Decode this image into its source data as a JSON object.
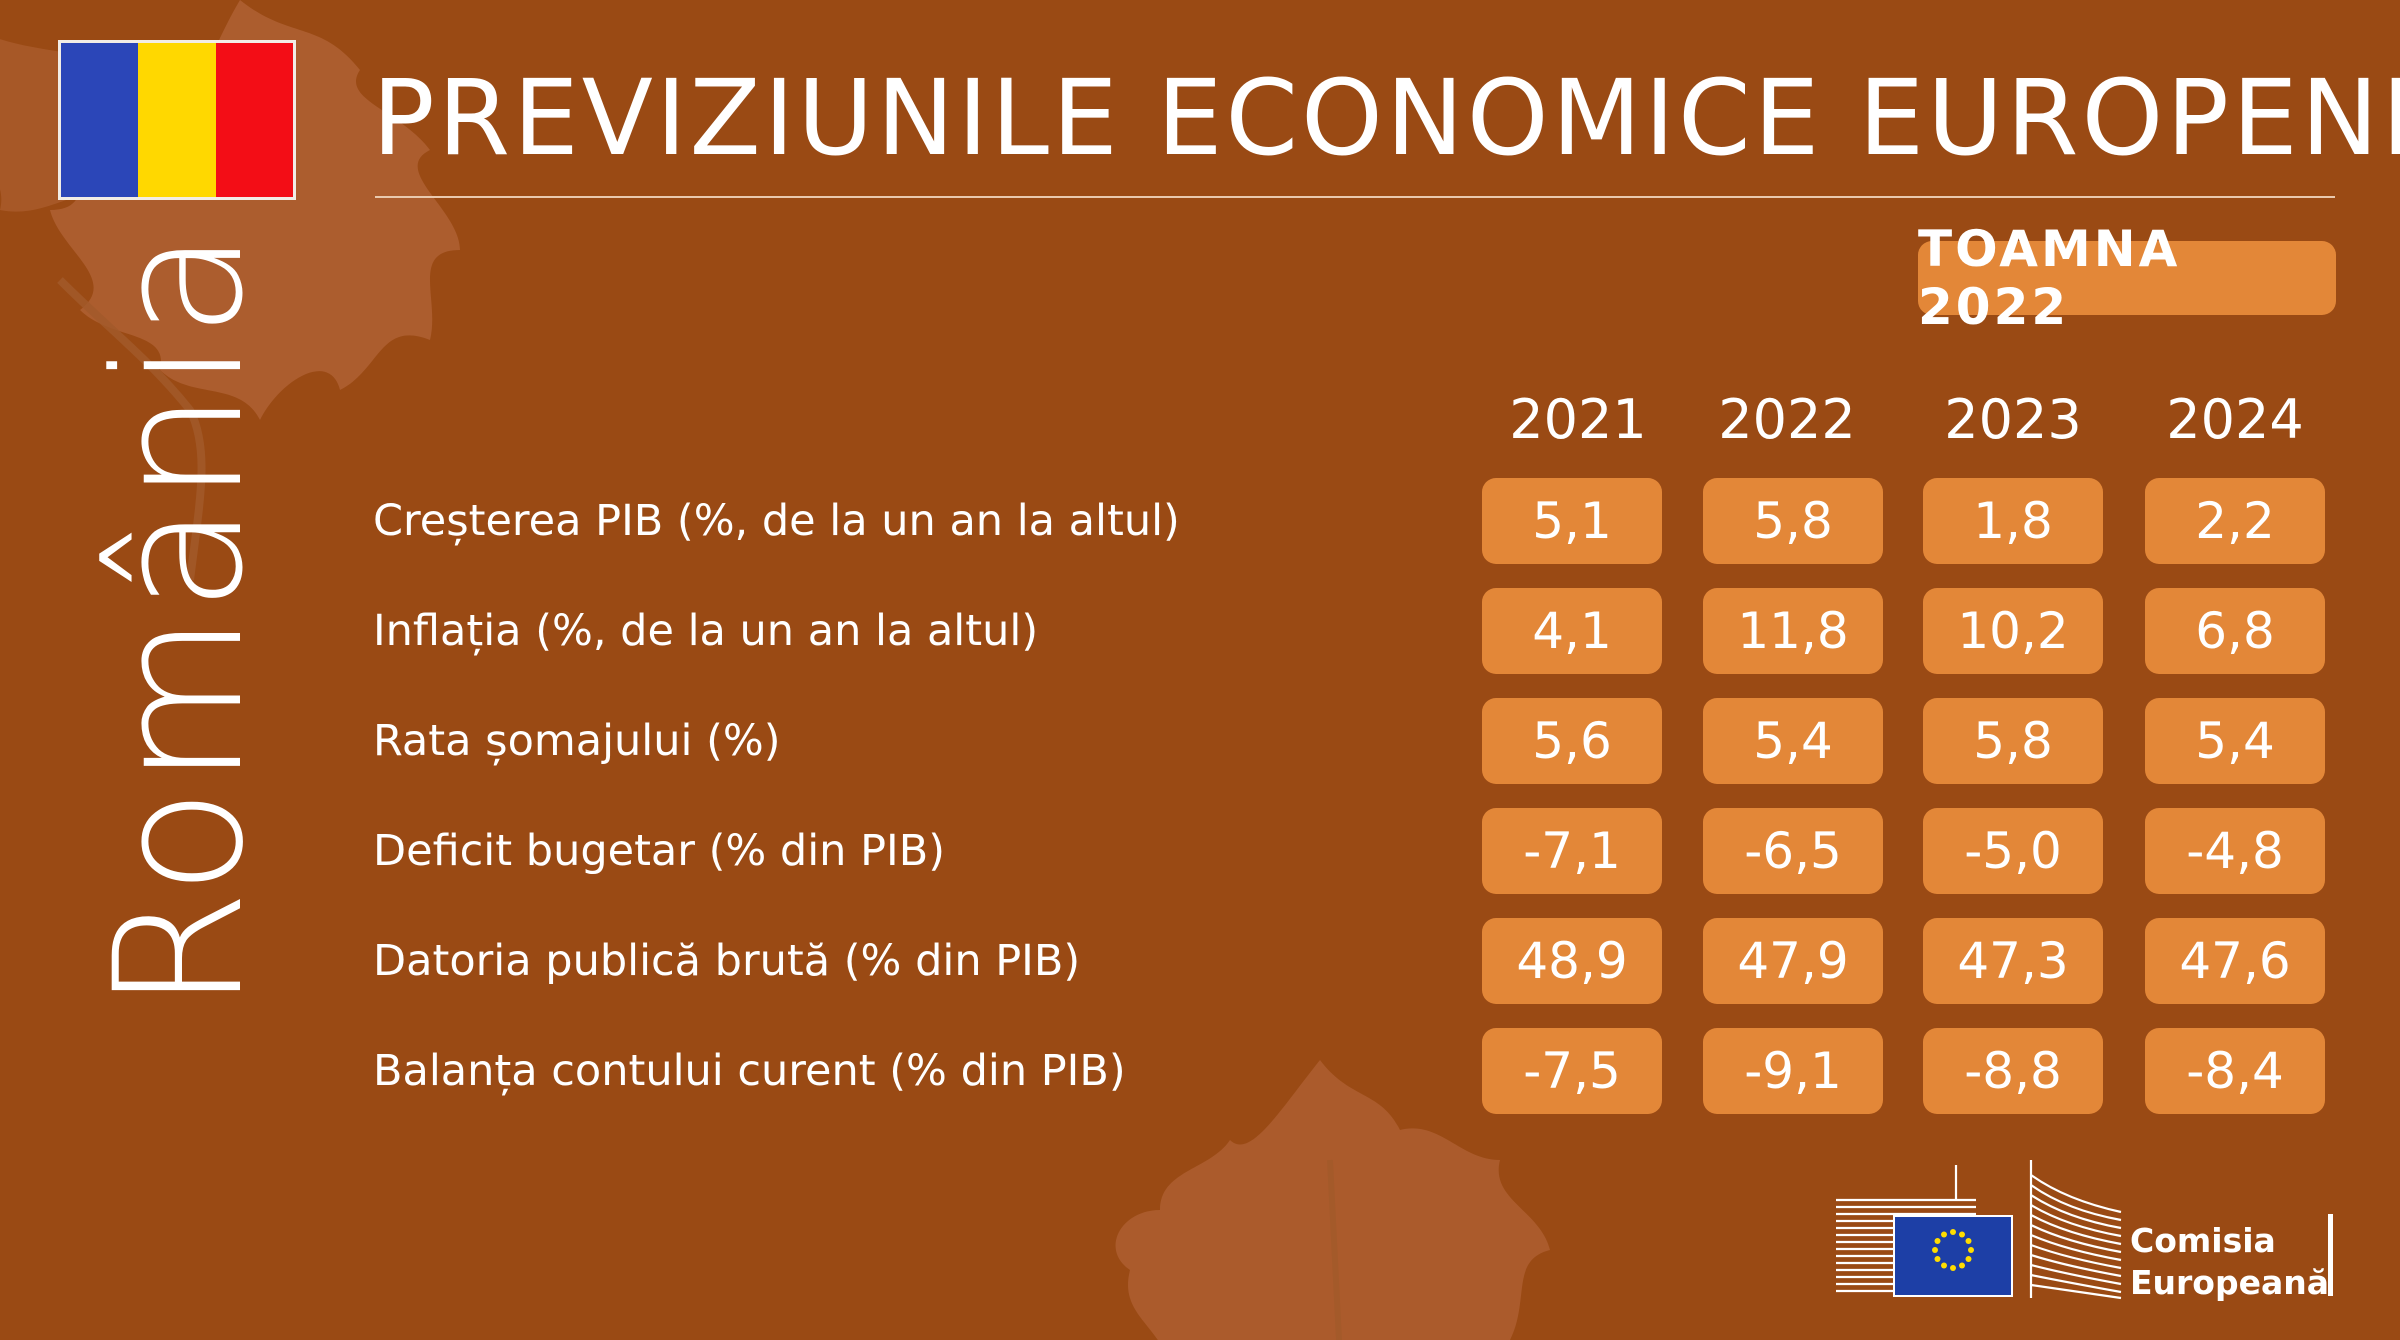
{
  "header": {
    "title": "PREVIZIUNILE ECONOMICE EUROPENE",
    "season": "TOAMNA 2022"
  },
  "country": {
    "name": "România",
    "flag_colors": [
      "#2b46b8",
      "#ffd800",
      "#f30d16"
    ]
  },
  "table": {
    "years": [
      "2021",
      "2022",
      "2023",
      "2024"
    ],
    "rows": [
      {
        "label": "Creșterea PIB (%, de la un an la altul)",
        "values": [
          "5,1",
          "5,8",
          "1,8",
          "2,2"
        ]
      },
      {
        "label": "Inflația (%, de la un an la altul)",
        "values": [
          "4,1",
          "11,8",
          "10,2",
          "6,8"
        ]
      },
      {
        "label": "Rata șomajului (%)",
        "values": [
          "5,6",
          "5,4",
          "5,8",
          "5,4"
        ]
      },
      {
        "label": "Deficit bugetar (% din PIB)",
        "values": [
          "-7,1",
          "-6,5",
          "-5,0",
          "-4,8"
        ]
      },
      {
        "label": "Datoria publică brută (% din PIB)",
        "values": [
          "48,9",
          "47,9",
          "47,3",
          "47,6"
        ]
      },
      {
        "label": "Balanța contului curent (% din PIB)",
        "values": [
          "-7,5",
          "-9,1",
          "-8,8",
          "-8,4"
        ]
      }
    ]
  },
  "logo": {
    "line1": "Comisia",
    "line2": "Europeană"
  },
  "colors": {
    "background": "#9a4a14",
    "accent": "#e38738",
    "text": "#ffffff"
  }
}
